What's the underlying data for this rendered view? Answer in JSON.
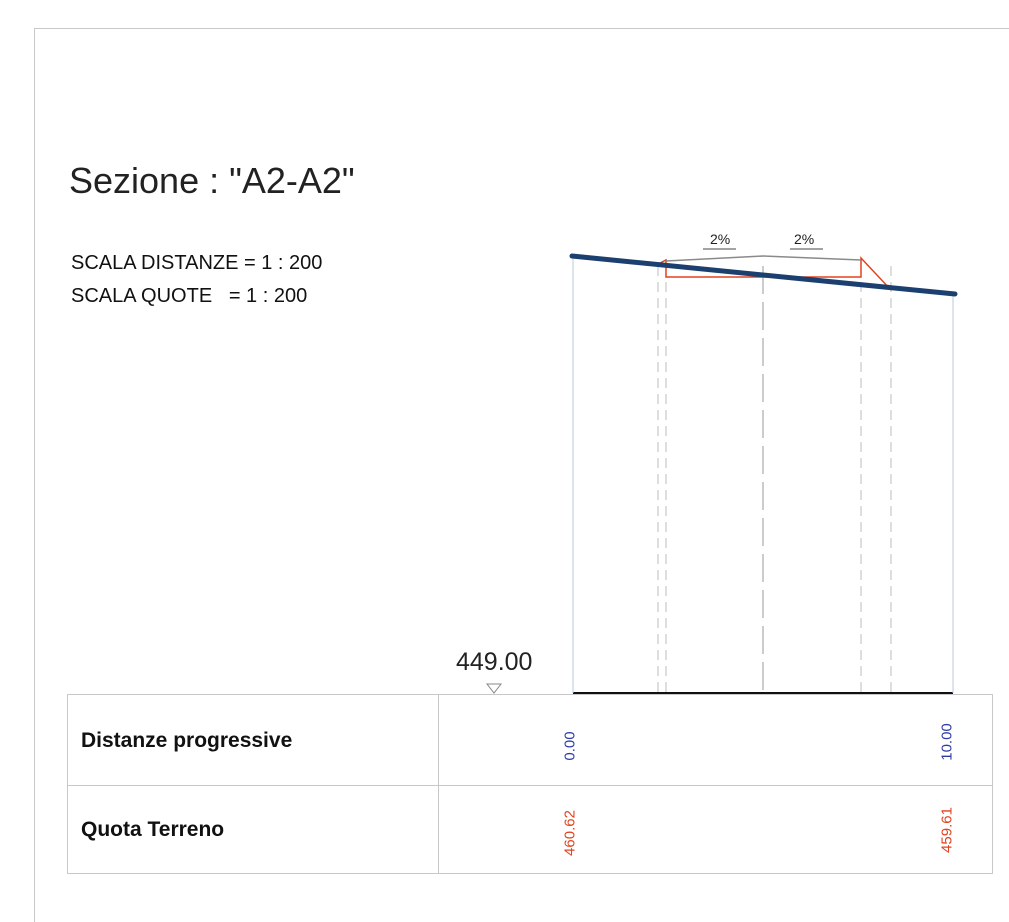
{
  "section": {
    "title": "Sezione : \"A2-A2\"",
    "scale_distances": "SCALA DISTANZE = 1 : 200",
    "scale_heights": "SCALA QUOTE   = 1 : 200"
  },
  "datum": {
    "label": "449.00"
  },
  "slopes": [
    {
      "label": "2%"
    },
    {
      "label": "2%"
    }
  ],
  "table": {
    "rows": [
      {
        "label": "Distanze progressive",
        "values": [
          "0.00",
          "10.00"
        ]
      },
      {
        "label": "Quota Terreno",
        "values": [
          "460.62",
          "459.61"
        ]
      }
    ]
  },
  "colors": {
    "terrain": "#1b3f6e",
    "road": "#e2431f",
    "distances": "#2f3aa8",
    "elevations": "#e2431f"
  }
}
